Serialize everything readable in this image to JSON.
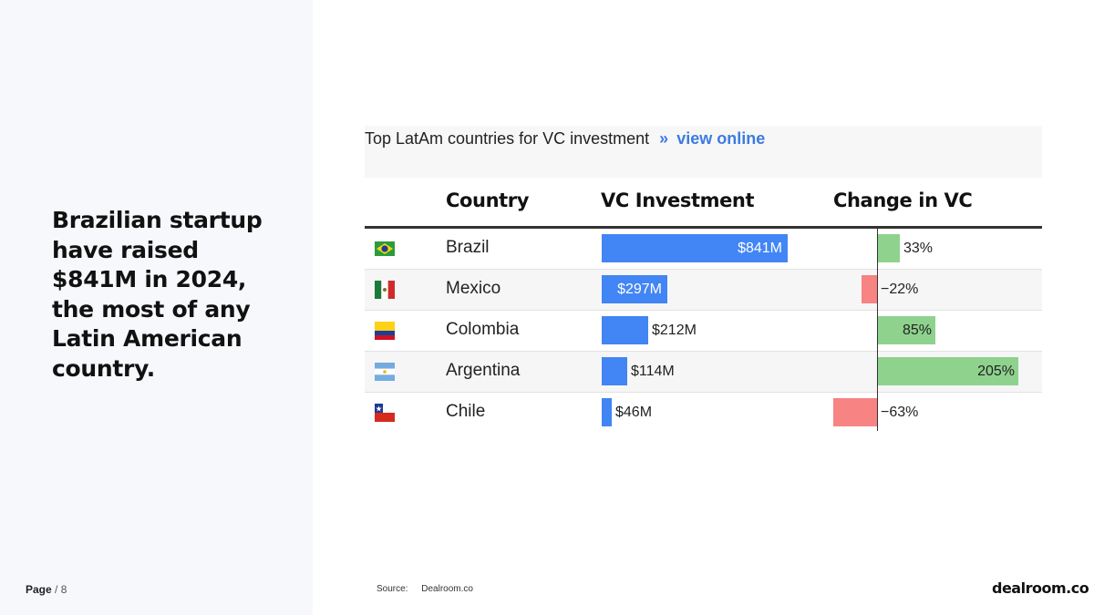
{
  "headline": "Brazilian startup have raised $841M in 2024, the most of any Latin American country.",
  "page": {
    "label": "Page",
    "separator": "/",
    "number": "8"
  },
  "chart_title": {
    "text": "Top LatAm countries for VC investment",
    "arrow": "»",
    "link": "view online"
  },
  "columns": {
    "country": "Country",
    "vc": "VC Investment",
    "change": "Change in VC"
  },
  "source": {
    "label": "Source:",
    "value": "Dealroom.co"
  },
  "logo": "dealroom.co",
  "colors": {
    "vc_bar": "#4285f4",
    "positive": "#8ed28e",
    "negative": "#f78383",
    "link": "#3d7be0"
  },
  "chart_data": {
    "type": "table",
    "title": "Top LatAm countries for VC investment",
    "columns": [
      "Country",
      "VC Investment",
      "Change in VC"
    ],
    "rows": [
      {
        "country": "Brazil",
        "flag": "brazil-flag-icon",
        "vc_value": 841,
        "vc_label": "$841M",
        "change": 33,
        "change_label": "33%"
      },
      {
        "country": "Mexico",
        "flag": "mexico-flag-icon",
        "vc_value": 297,
        "vc_label": "$297M",
        "change": -22,
        "change_label": "−22%"
      },
      {
        "country": "Colombia",
        "flag": "colombia-flag-icon",
        "vc_value": 212,
        "vc_label": "$212M",
        "change": 85,
        "change_label": "85%"
      },
      {
        "country": "Argentina",
        "flag": "argentina-flag-icon",
        "vc_value": 114,
        "vc_label": "$114M",
        "change": 205,
        "change_label": "205%"
      },
      {
        "country": "Chile",
        "flag": "chile-flag-icon",
        "vc_value": 46,
        "vc_label": "$46M",
        "change": -63,
        "change_label": "−63%"
      }
    ]
  }
}
